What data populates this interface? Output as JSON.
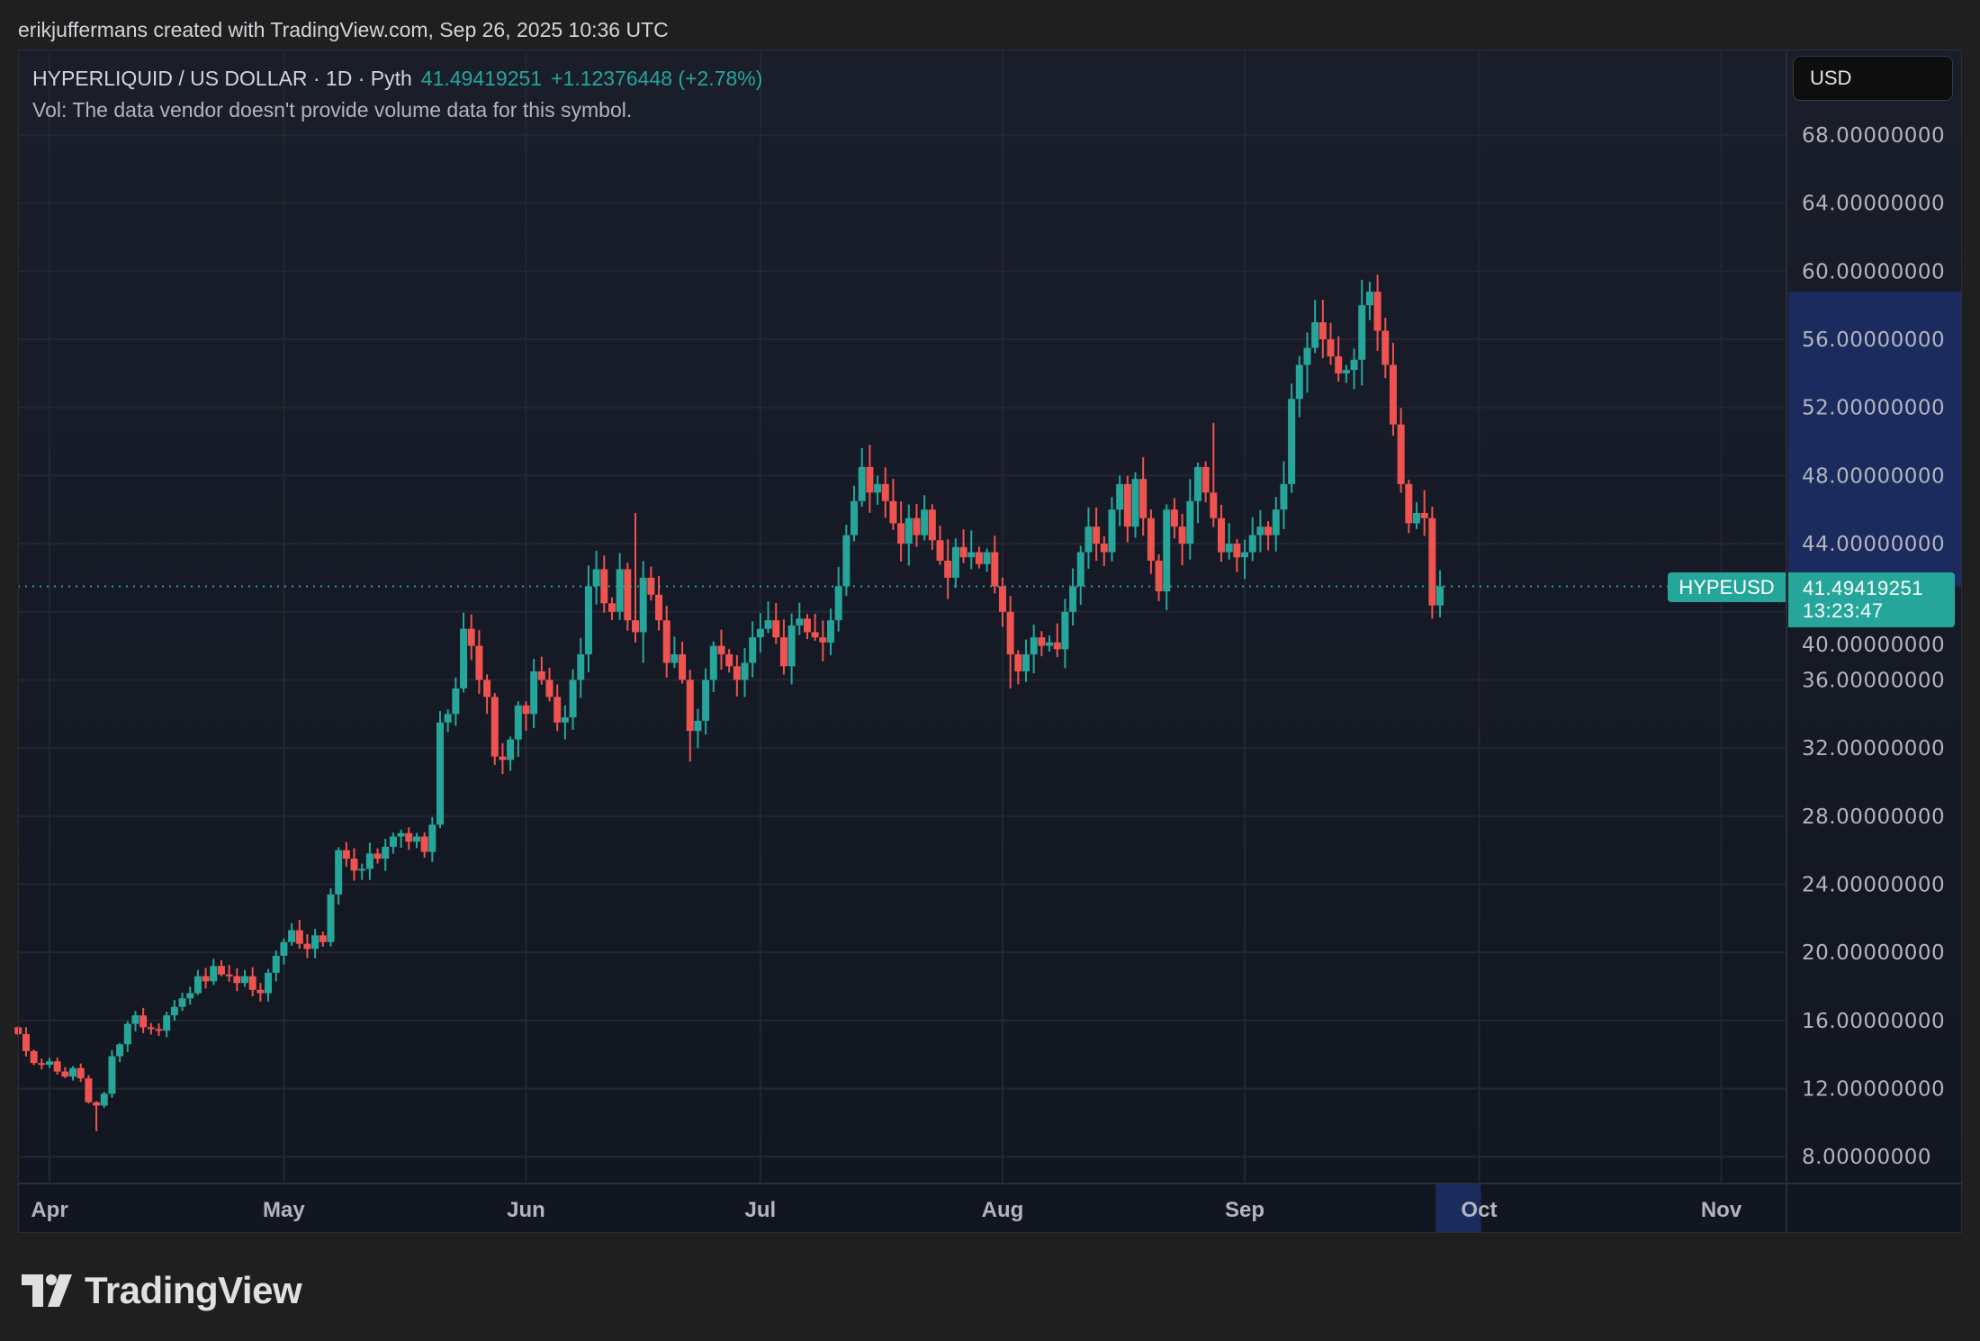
{
  "credit": "erikjuffermans created with TradingView.com, Sep 26, 2025 10:36 UTC",
  "legend": {
    "title": "HYPERLIQUID / US DOLLAR · 1D · Pyth",
    "last": "41.49419251",
    "change": "+1.12376448 (+2.78%)",
    "vol": "Vol: The data vendor doesn't provide volume data for this symbol."
  },
  "currency_button": "USD",
  "symbol_label": "HYPEUSD",
  "price_label": {
    "price": "41.49419251",
    "countdown": "13:23:47"
  },
  "logo": {
    "text": "TradingView",
    "icon": "tradingview-logo-icon"
  },
  "colors": {
    "up": "#26a69a",
    "down": "#ef5350",
    "background": "#161a25",
    "grid": "#232733",
    "axis_highlight": "#1c2b5e"
  },
  "chart_data": {
    "type": "candlestick",
    "title": "HYPERLIQUID / US DOLLAR · 1D · Pyth",
    "start_date": "2025-03-28",
    "first_open": 15.6,
    "ylim": [
      6,
      70
    ],
    "y_ticks": [
      8,
      12,
      16,
      20,
      24,
      28,
      32,
      36,
      40,
      44,
      48,
      52,
      56,
      60,
      64,
      68
    ],
    "y_tick_labels": [
      "8.00000000",
      "12.00000000",
      "16.00000000",
      "20.00000000",
      "24.00000000",
      "28.00000000",
      "32.00000000",
      "36.00000000",
      "40.00000000",
      "44.00000000",
      "48.00000000",
      "52.00000000",
      "56.00000000",
      "60.00000000",
      "64.00000000",
      "68.00000000"
    ],
    "x_ticks": [
      {
        "label": "Apr",
        "day": 4
      },
      {
        "label": "May",
        "day": 34
      },
      {
        "label": "Jun",
        "day": 65
      },
      {
        "label": "Jul",
        "day": 95
      },
      {
        "label": "Aug",
        "day": 126
      },
      {
        "label": "Sep",
        "day": 157
      },
      {
        "label": "Oct",
        "day": 187
      },
      {
        "label": "Nov",
        "day": 218
      }
    ],
    "x_range_days": [
      -0.5,
      227
    ],
    "highlight_price_range": [
      41.49419251,
      58.8
    ],
    "highlight_day_range": [
      181,
      187
    ],
    "last_price": 41.49419251,
    "close": [
      15.2,
      14.2,
      13.5,
      13.4,
      13.6,
      13.0,
      12.7,
      13.2,
      12.6,
      11.2,
      11.0,
      11.7,
      13.9,
      14.6,
      15.8,
      16.3,
      15.6,
      15.5,
      15.4,
      16.3,
      16.8,
      17.3,
      17.6,
      18.6,
      18.3,
      19.2,
      18.7,
      18.6,
      18.2,
      18.6,
      17.8,
      17.6,
      18.8,
      19.8,
      20.6,
      21.3,
      20.5,
      20.2,
      21.0,
      20.6,
      23.4,
      26.0,
      25.5,
      24.8,
      24.9,
      25.8,
      25.5,
      26.2,
      26.8,
      27.0,
      26.5,
      26.8,
      25.9,
      27.5,
      33.5,
      34.0,
      35.5,
      39.0,
      38.0,
      36.0,
      35.0,
      31.5,
      31.3,
      32.5,
      34.5,
      34.0,
      36.5,
      36.0,
      35.0,
      33.5,
      33.8,
      36.0,
      37.5,
      41.5,
      42.5,
      40.5,
      40.0,
      42.5,
      39.5,
      38.8,
      42.0,
      41.0,
      39.5,
      37.0,
      37.5,
      36.0,
      33.0,
      33.6,
      36.0,
      38.0,
      37.5,
      36.8,
      36.0,
      37.0,
      38.5,
      39.0,
      39.5,
      38.5,
      36.8,
      39.2,
      39.6,
      38.8,
      38.5,
      38.2,
      39.5,
      41.5,
      44.5,
      46.5,
      48.5,
      47.0,
      47.5,
      46.5,
      45.2,
      44.0,
      45.5,
      44.5,
      46.0,
      44.2,
      43.0,
      42.0,
      43.8,
      43.2,
      43.5,
      42.8,
      43.5,
      41.5,
      40.0,
      37.5,
      36.5,
      37.5,
      38.5,
      38.0,
      38.2,
      37.8,
      40.0,
      41.5,
      43.5,
      45.0,
      44.0,
      43.5,
      46.0,
      47.5,
      45.0,
      47.8,
      45.5,
      43.0,
      41.2,
      46.0,
      45.0,
      44.0,
      46.5,
      48.5,
      47.0,
      45.5,
      43.5,
      44.0,
      43.2,
      43.5,
      44.5,
      45.0,
      44.5,
      46.0,
      47.5,
      52.5,
      54.5,
      55.5,
      57.0,
      56.0,
      55.0,
      54.0,
      54.2,
      54.8,
      58.0,
      58.8,
      56.5,
      54.5,
      51.0,
      47.5,
      45.2,
      45.8,
      45.5,
      40.37,
      41.49419251
    ],
    "wick_overrides": [
      {
        "day": 10,
        "low": 9.5
      },
      {
        "day": 79,
        "high": 45.8
      },
      {
        "day": 80,
        "low": 37.0
      },
      {
        "day": 86,
        "low": 31.2
      },
      {
        "day": 109,
        "high": 49.8
      },
      {
        "day": 127,
        "low": 35.5
      },
      {
        "day": 153,
        "high": 51.1
      },
      {
        "day": 172,
        "high": 59.5
      },
      {
        "day": 181,
        "low": 39.6
      }
    ]
  }
}
